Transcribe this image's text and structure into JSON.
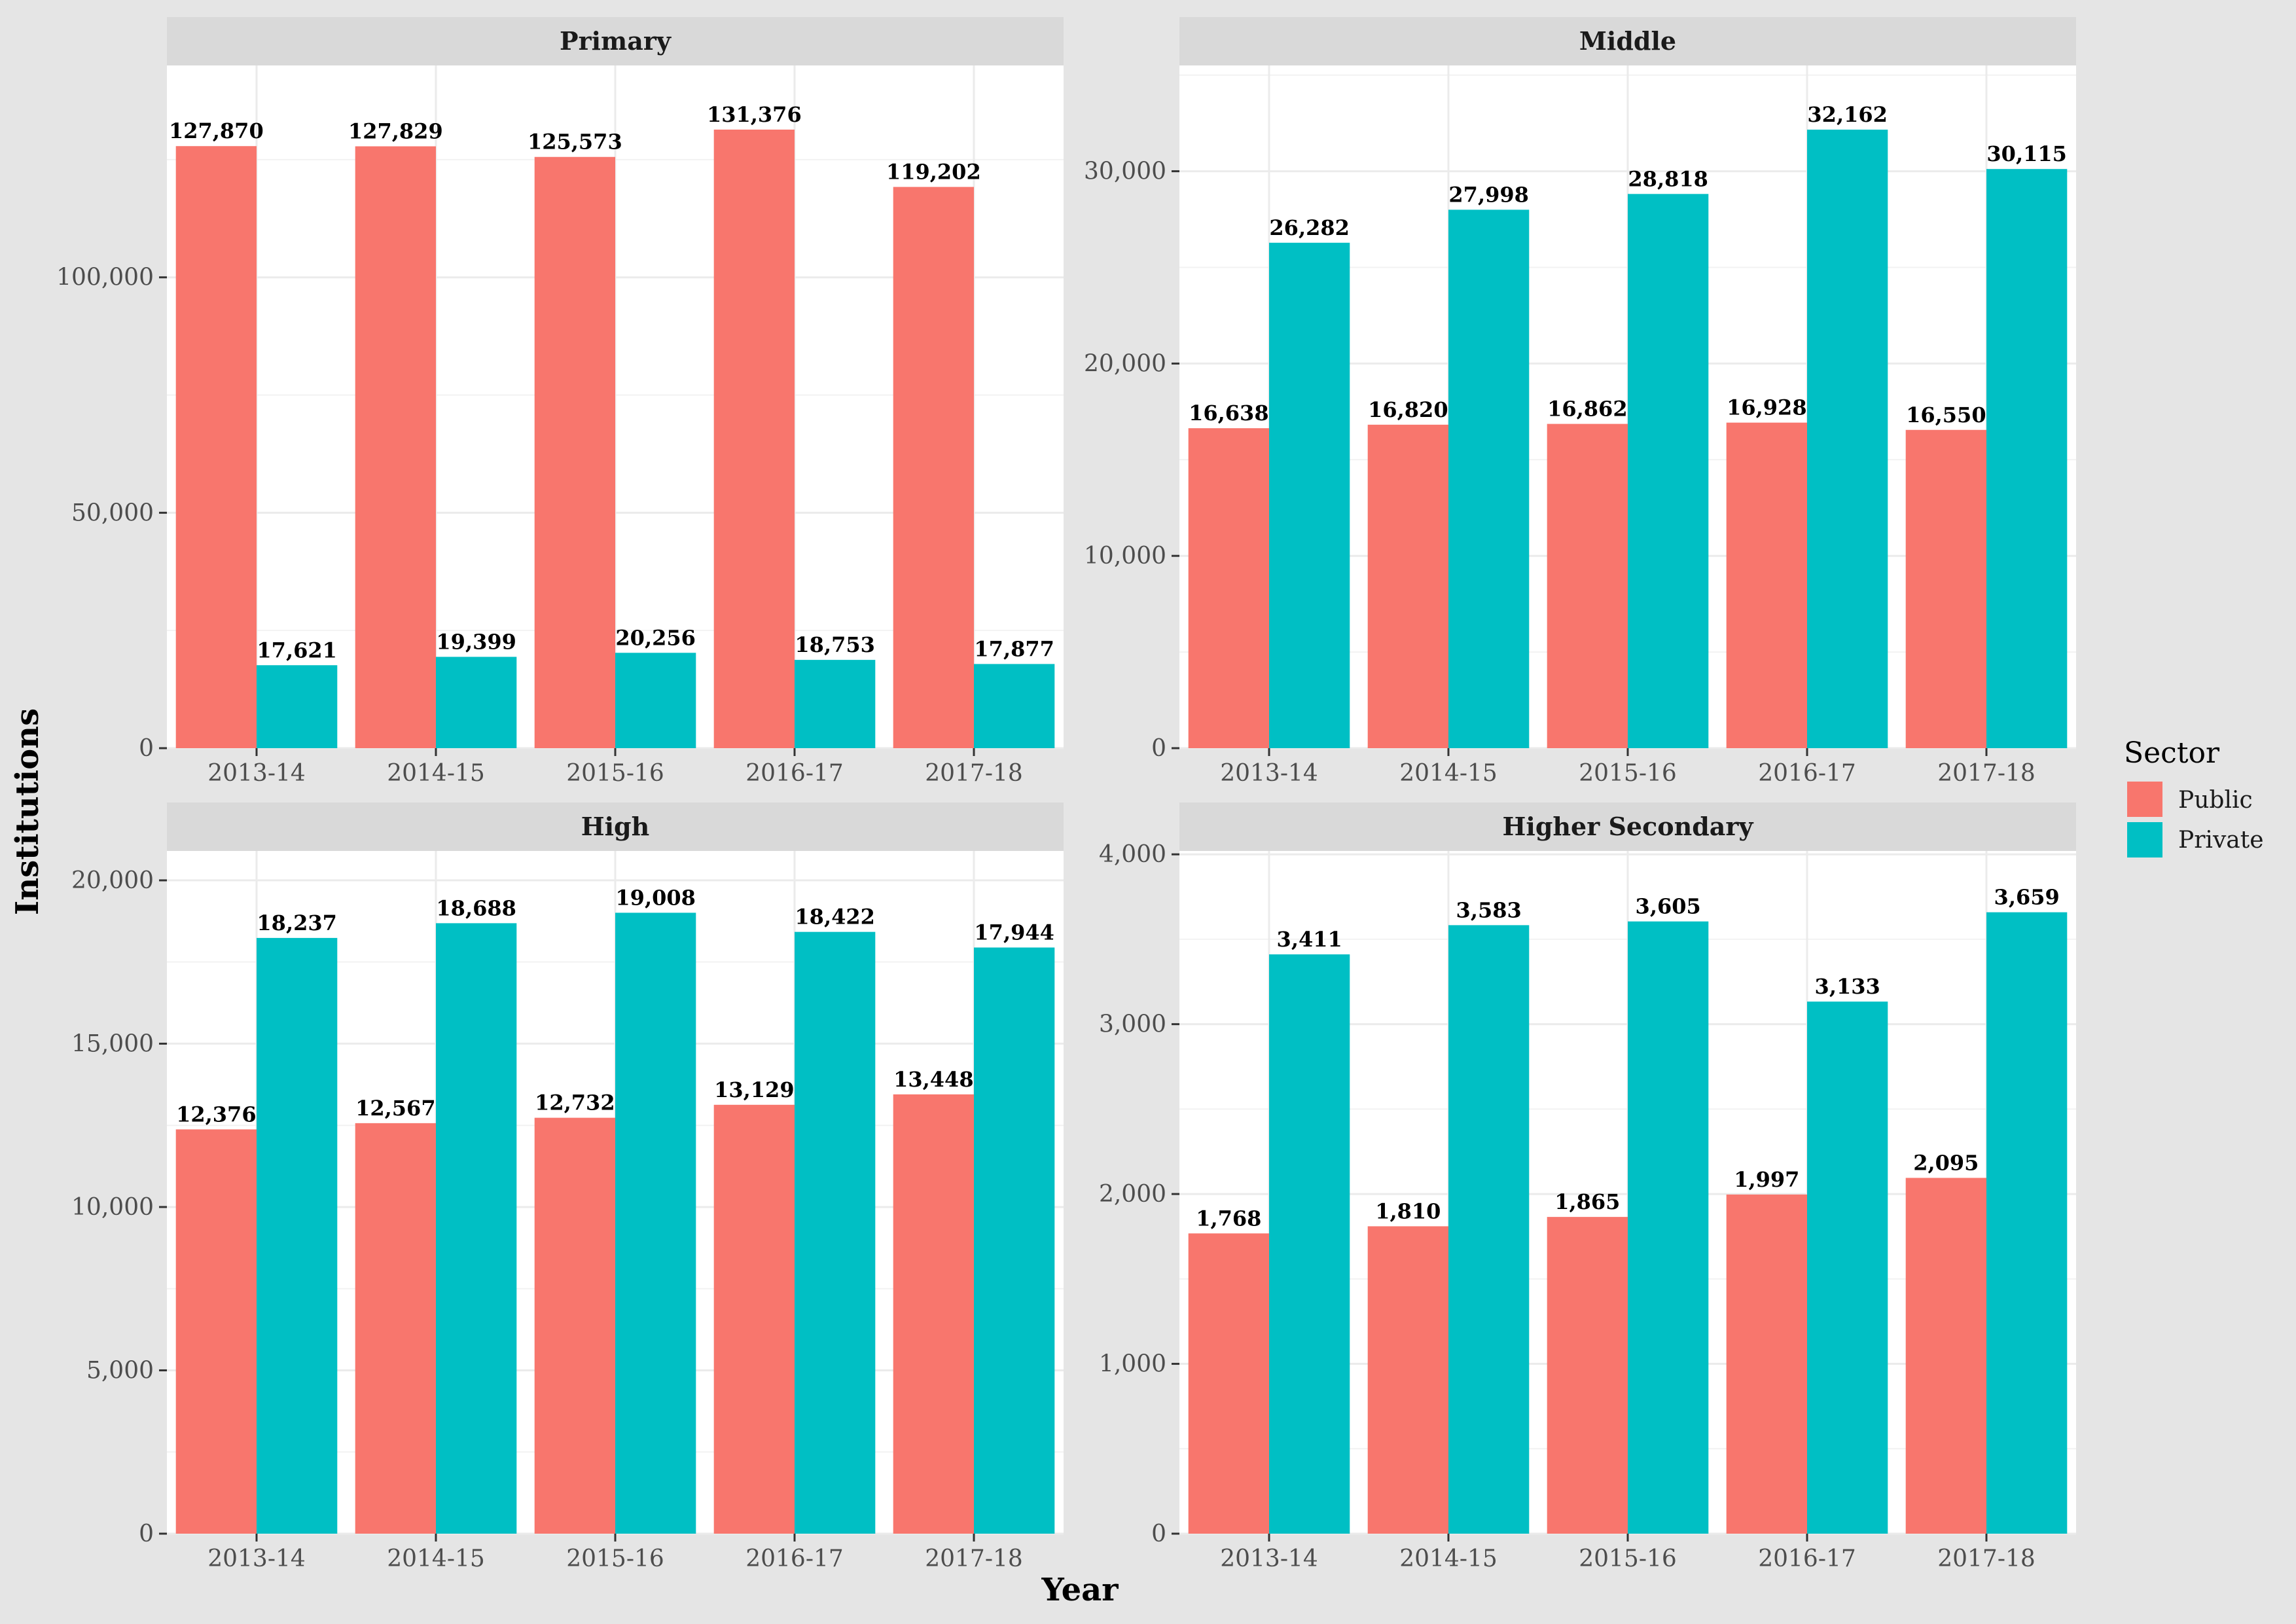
{
  "chart_data": {
    "type": "bar",
    "xlabel": "Year",
    "ylabel": "Institutions",
    "legend": {
      "title": "Sector",
      "position": "right",
      "entries": [
        {
          "name": "Public",
          "color": "#f8766d"
        },
        {
          "name": "Private",
          "color": "#00bfc4"
        }
      ]
    },
    "grid": true,
    "panels": [
      {
        "title": "Primary",
        "categories": [
          "2013-14",
          "2014-15",
          "2015-16",
          "2016-17",
          "2017-18"
        ],
        "ylim": [
          0,
          145000
        ],
        "yticks": [
          0,
          50000,
          100000
        ],
        "ytick_labels": [
          "0",
          "50,000",
          "100,000"
        ],
        "series": [
          {
            "name": "Public",
            "values": [
              127870,
              127829,
              125573,
              131376,
              119202
            ],
            "labels": [
              "127,870",
              "127,829",
              "125,573",
              "131,376",
              "119,202"
            ]
          },
          {
            "name": "Private",
            "values": [
              17621,
              19399,
              20256,
              18753,
              17877
            ],
            "labels": [
              "17,621",
              "19,399",
              "20,256",
              "18,753",
              "17,877"
            ]
          }
        ]
      },
      {
        "title": "Middle",
        "categories": [
          "2013-14",
          "2014-15",
          "2015-16",
          "2016-17",
          "2017-18"
        ],
        "ylim": [
          0,
          35500
        ],
        "yticks": [
          0,
          10000,
          20000,
          30000
        ],
        "ytick_labels": [
          "0",
          "10,000",
          "20,000",
          "30,000"
        ],
        "series": [
          {
            "name": "Public",
            "values": [
              16638,
              16820,
              16862,
              16928,
              16550
            ],
            "labels": [
              "16,638",
              "16,820",
              "16,862",
              "16,928",
              "16,550"
            ]
          },
          {
            "name": "Private",
            "values": [
              26282,
              27998,
              28818,
              32162,
              30115
            ],
            "labels": [
              "26,282",
              "27,998",
              "28,818",
              "32,162",
              "30,115"
            ]
          }
        ]
      },
      {
        "title": "High",
        "categories": [
          "2013-14",
          "2014-15",
          "2015-16",
          "2016-17",
          "2017-18"
        ],
        "ylim": [
          0,
          20900
        ],
        "yticks": [
          0,
          5000,
          10000,
          15000,
          20000
        ],
        "ytick_labels": [
          "0",
          "5,000",
          "10,000",
          "15,000",
          "20,000"
        ],
        "series": [
          {
            "name": "Public",
            "values": [
              12376,
              12567,
              12732,
              13129,
              13448
            ],
            "labels": [
              "12,376",
              "12,567",
              "12,732",
              "13,129",
              "13,448"
            ]
          },
          {
            "name": "Private",
            "values": [
              18237,
              18688,
              19008,
              18422,
              17944
            ],
            "labels": [
              "18,237",
              "18,688",
              "19,008",
              "18,422",
              "17,944"
            ]
          }
        ]
      },
      {
        "title": "Higher Secondary",
        "categories": [
          "2013-14",
          "2014-15",
          "2015-16",
          "2016-17",
          "2017-18"
        ],
        "ylim": [
          0,
          4020
        ],
        "yticks": [
          0,
          1000,
          2000,
          3000,
          4000
        ],
        "ytick_labels": [
          "0",
          "1,000",
          "2,000",
          "3,000",
          "4,000"
        ],
        "series": [
          {
            "name": "Public",
            "values": [
              1768,
              1810,
              1865,
              1997,
              2095
            ],
            "labels": [
              "1,768",
              "1,810",
              "1,865",
              "1,997",
              "2,095"
            ]
          },
          {
            "name": "Private",
            "values": [
              3411,
              3583,
              3605,
              3133,
              3659
            ],
            "labels": [
              "3,411",
              "3,583",
              "3,605",
              "3,133",
              "3,659"
            ]
          }
        ]
      }
    ]
  }
}
